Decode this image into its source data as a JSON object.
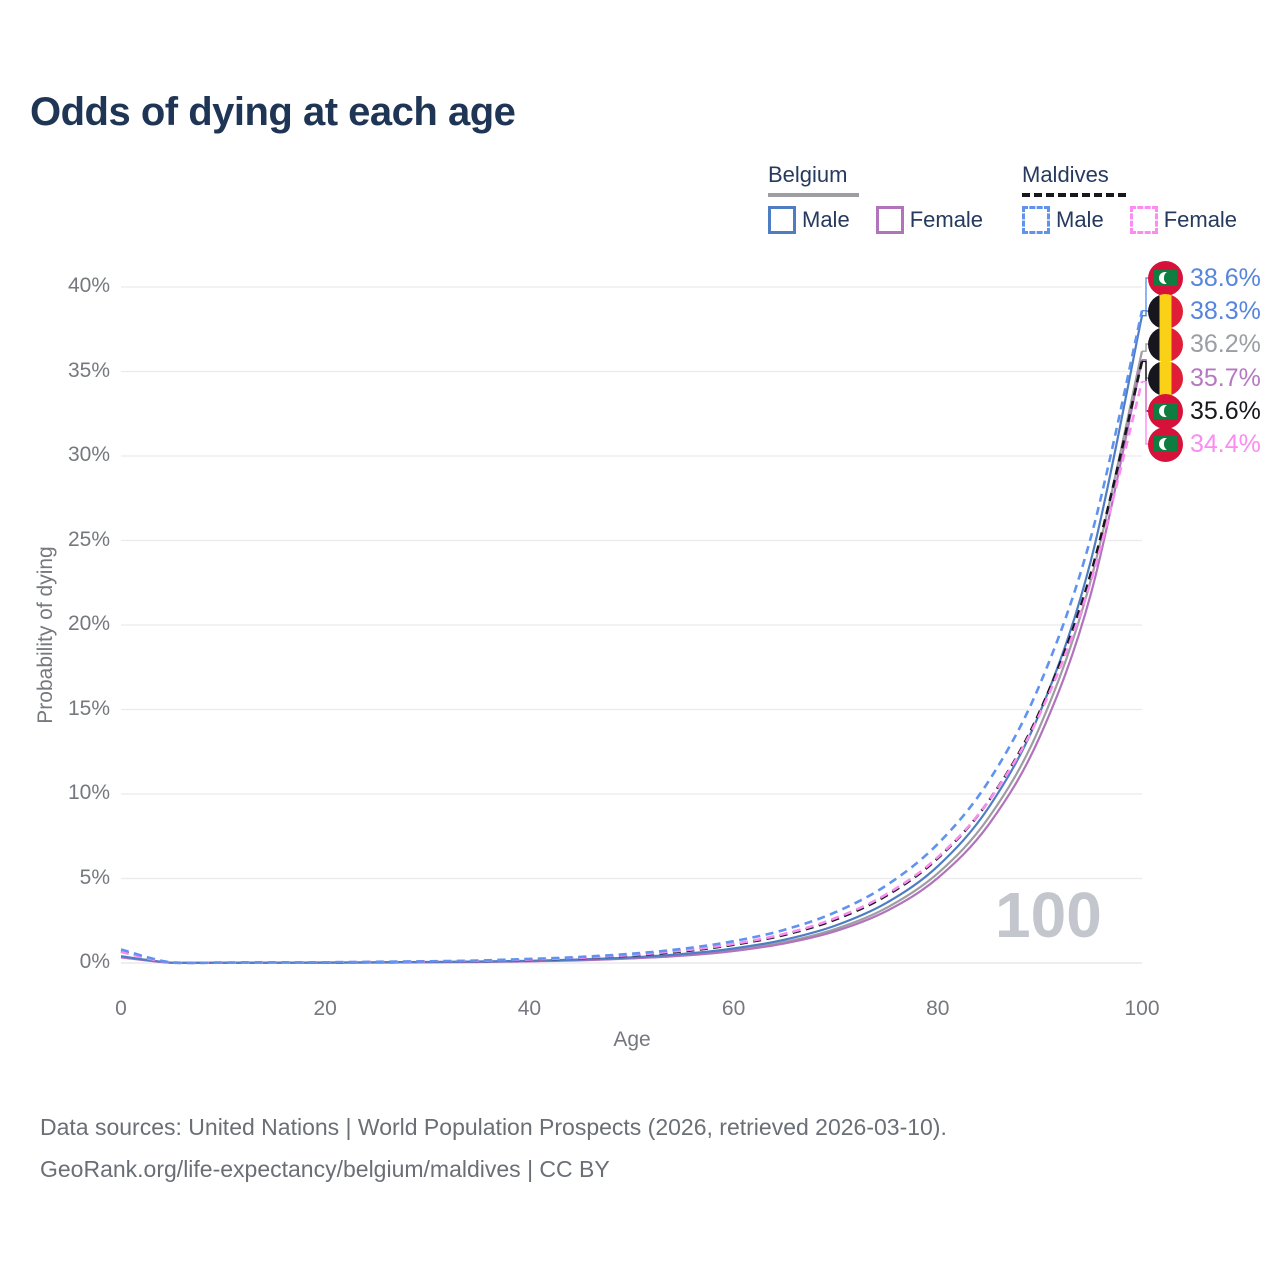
{
  "title": "Odds of dying at each age",
  "watermark": "100",
  "legend": {
    "groups": [
      {
        "label": "Belgium",
        "line_style": "solid",
        "underline_color": "#9d9da2",
        "items": [
          {
            "label": "Male",
            "color": "#4f7dc3"
          },
          {
            "label": "Female",
            "color": "#b173bc"
          }
        ]
      },
      {
        "label": "Maldives",
        "line_style": "dashed",
        "underline_color": "#17171c",
        "items": [
          {
            "label": "Male",
            "color": "#5f93ef"
          },
          {
            "label": "Female",
            "color": "#fa8cf2"
          }
        ]
      }
    ]
  },
  "chart_data": {
    "type": "line",
    "title": "Odds of dying at each age",
    "xlabel": "Age",
    "ylabel": "Probability of dying",
    "xlim": [
      0,
      100
    ],
    "ylim_percent": [
      0,
      40
    ],
    "grid": "horizontal",
    "legend_position": "top-right",
    "x_ticks": [
      "0",
      "20",
      "40",
      "60",
      "80",
      "100"
    ],
    "x_tick_values": [
      0,
      20,
      40,
      60,
      80,
      100
    ],
    "y_ticks": [
      "0%",
      "5%",
      "10%",
      "15%",
      "20%",
      "25%",
      "30%",
      "35%",
      "40%"
    ],
    "y_tick_values": [
      0,
      5,
      10,
      15,
      20,
      25,
      30,
      35,
      40
    ],
    "x": [
      0,
      5,
      10,
      15,
      20,
      25,
      30,
      35,
      40,
      45,
      50,
      55,
      60,
      65,
      70,
      75,
      80,
      85,
      90,
      95,
      100
    ],
    "series": [
      {
        "key": "belgium_total",
        "country": "Belgium",
        "sex": "Total",
        "color": "#9d9da2",
        "dash": "solid",
        "values": [
          0.37,
          0.01,
          0.01,
          0.02,
          0.02,
          0.03,
          0.05,
          0.07,
          0.11,
          0.18,
          0.29,
          0.47,
          0.77,
          1.24,
          2.02,
          3.27,
          5.31,
          8.62,
          13.99,
          22.69,
          36.2
        ]
      },
      {
        "key": "belgium_female",
        "country": "Belgium",
        "sex": "Female",
        "color": "#b173bc",
        "dash": "solid",
        "values": [
          0.33,
          0.01,
          0.01,
          0.01,
          0.02,
          0.03,
          0.04,
          0.06,
          0.1,
          0.16,
          0.27,
          0.43,
          0.71,
          1.16,
          1.89,
          3.08,
          5.03,
          8.21,
          13.4,
          21.87,
          35.7
        ]
      },
      {
        "key": "belgium_male",
        "country": "Belgium",
        "sex": "Male",
        "color": "#4f7dc3",
        "dash": "solid",
        "values": [
          0.4,
          0.02,
          0.02,
          0.02,
          0.03,
          0.04,
          0.06,
          0.09,
          0.13,
          0.21,
          0.33,
          0.53,
          0.86,
          1.38,
          2.22,
          3.57,
          5.73,
          9.22,
          14.83,
          23.84,
          38.3
        ]
      },
      {
        "key": "maldives_total",
        "country": "Maldives",
        "sex": "Total",
        "color": "#17171c",
        "dash": "dashed",
        "values": [
          0.7,
          0.02,
          0.02,
          0.03,
          0.03,
          0.05,
          0.08,
          0.12,
          0.19,
          0.29,
          0.45,
          0.69,
          1.08,
          1.67,
          2.58,
          4.0,
          6.2,
          9.61,
          14.9,
          23.08,
          35.6
        ]
      },
      {
        "key": "maldives_female",
        "country": "Maldives",
        "sex": "Female",
        "color": "#fa8cf2",
        "dash": "dashed",
        "values": [
          0.65,
          0.02,
          0.02,
          0.02,
          0.04,
          0.06,
          0.09,
          0.13,
          0.2,
          0.31,
          0.48,
          0.74,
          1.13,
          1.73,
          2.66,
          4.08,
          6.26,
          9.6,
          14.74,
          22.62,
          34.4
        ]
      },
      {
        "key": "maldives_male",
        "country": "Maldives",
        "sex": "Male",
        "color": "#5f93ef",
        "dash": "dashed",
        "values": [
          0.8,
          0.02,
          0.02,
          0.03,
          0.04,
          0.07,
          0.1,
          0.15,
          0.24,
          0.36,
          0.55,
          0.84,
          1.29,
          1.97,
          3.01,
          4.61,
          7.05,
          10.78,
          16.49,
          25.22,
          38.6
        ]
      }
    ],
    "end_labels": [
      {
        "series": "maldives_male",
        "text": "38.6%",
        "text_color": "#5585dd",
        "flag": "maldives"
      },
      {
        "series": "belgium_male",
        "text": "38.3%",
        "text_color": "#5585dd",
        "flag": "belgium"
      },
      {
        "series": "belgium_total",
        "text": "36.2%",
        "text_color": "#9b9ea4",
        "flag": "belgium"
      },
      {
        "series": "belgium_female",
        "text": "35.7%",
        "text_color": "#b778c2",
        "flag": "belgium"
      },
      {
        "series": "maldives_total",
        "text": "35.6%",
        "text_color": "#17171c",
        "flag": "maldives"
      },
      {
        "series": "maldives_female",
        "text": "34.4%",
        "text_color": "#fa8cf2",
        "flag": "maldives"
      }
    ]
  },
  "footer": {
    "line1": "Data sources: United Nations | World Population Prospects (2026, retrieved 2026-03-10).",
    "line2": "GeoRank.org/life-expectancy/belgium/maldives | CC BY"
  }
}
